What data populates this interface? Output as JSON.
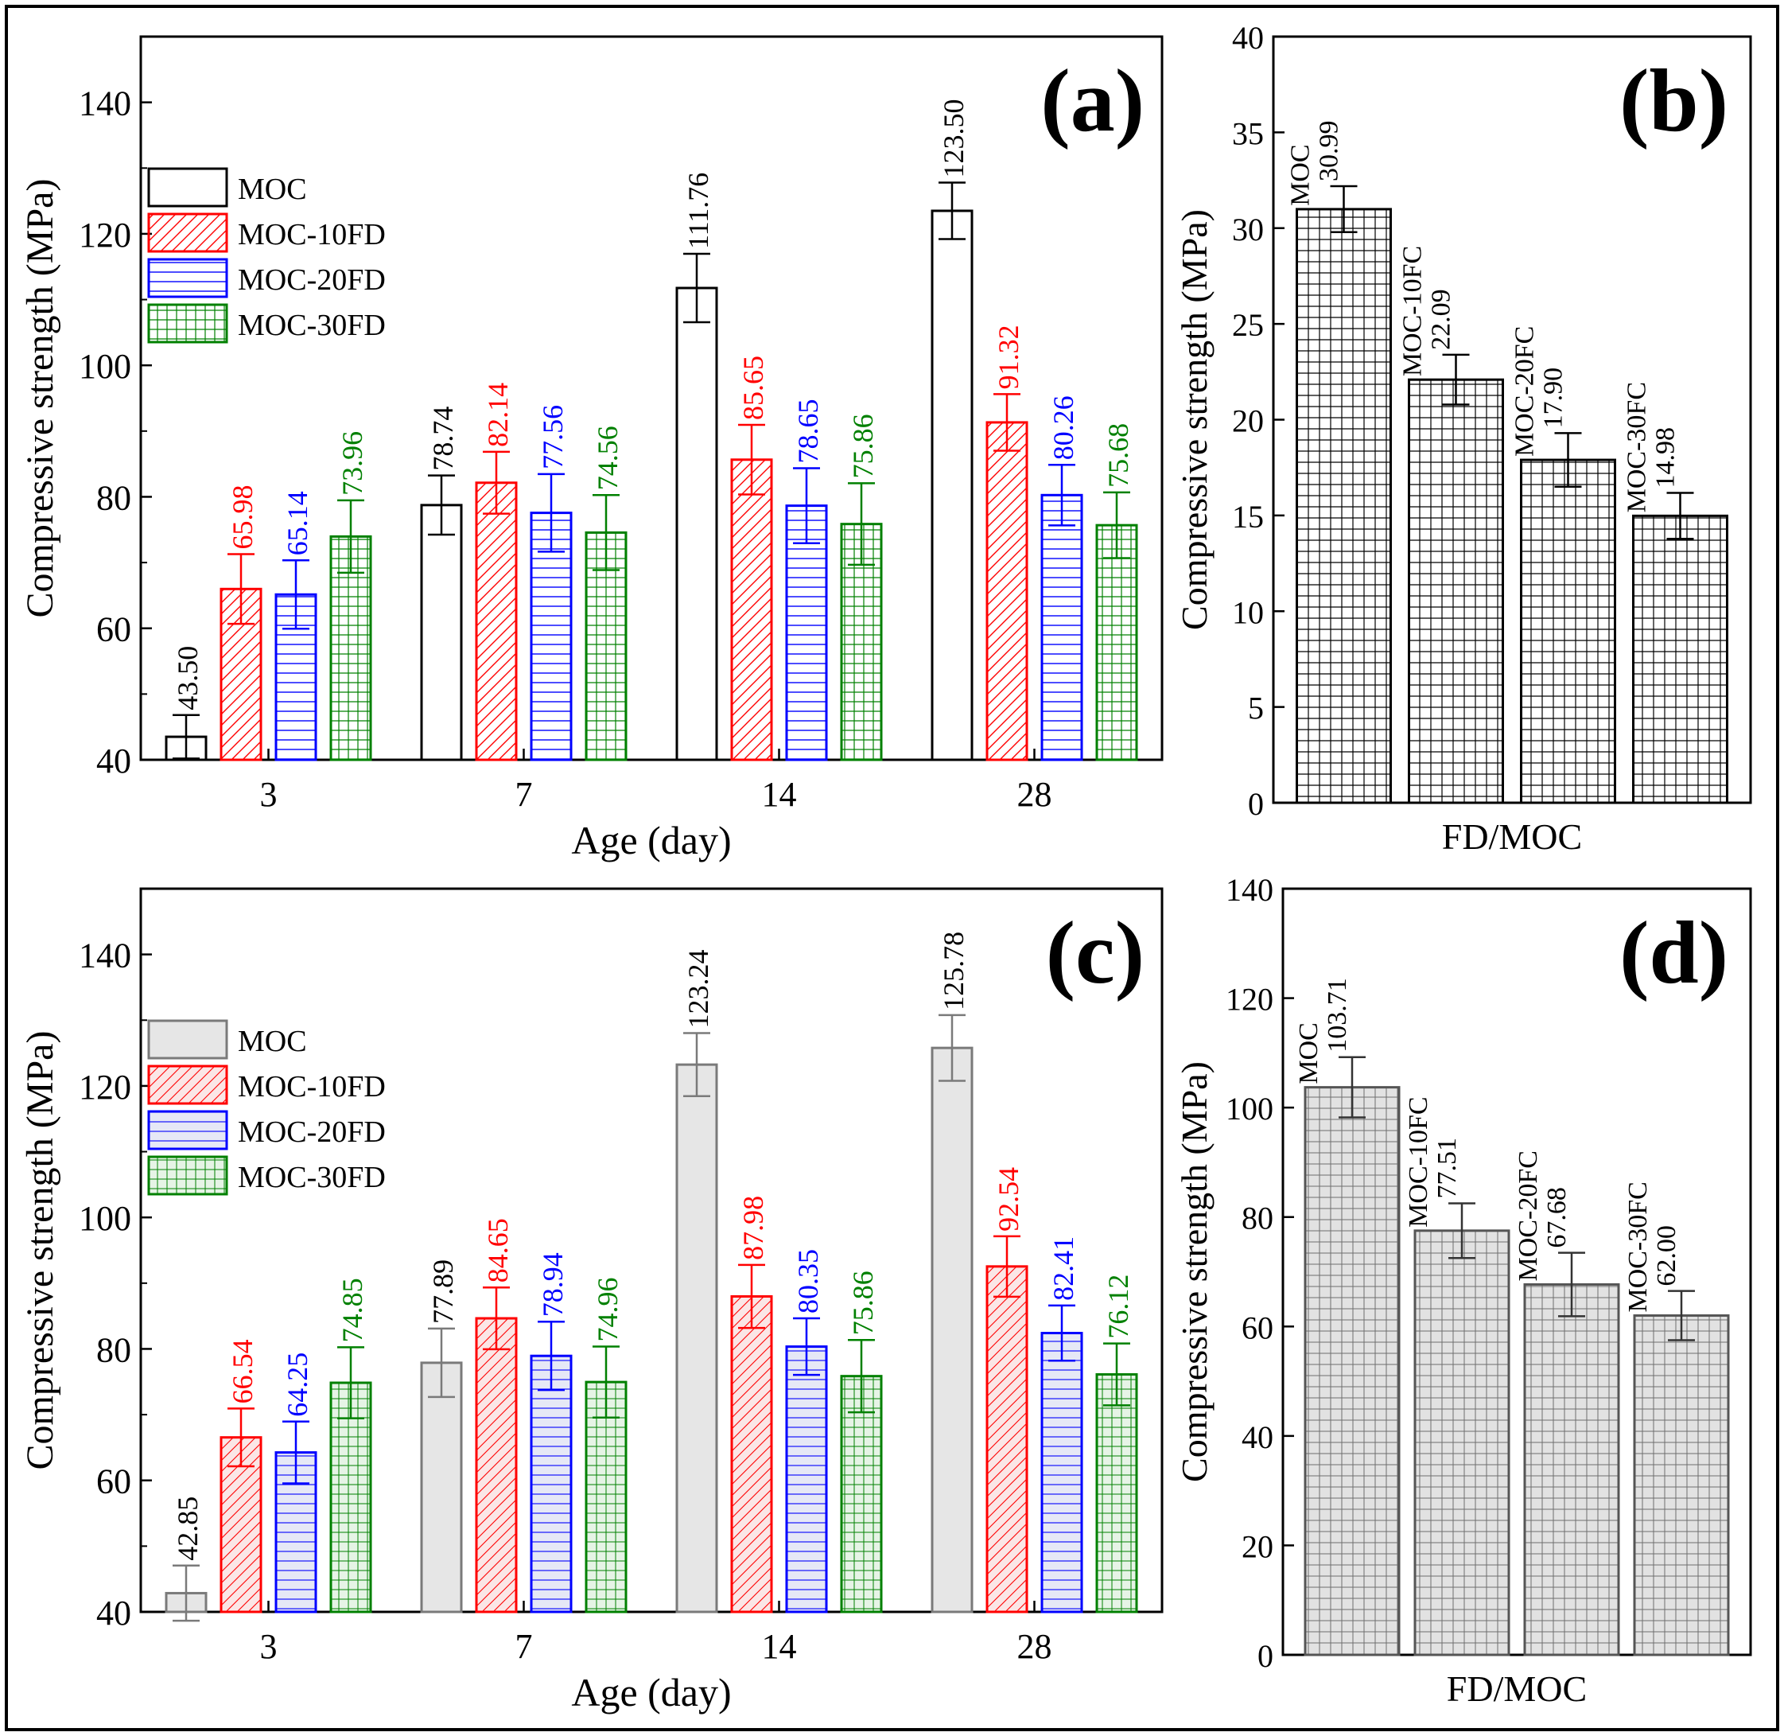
{
  "colors": {
    "series": [
      "#000000",
      "#ff0000",
      "#0000ff",
      "#008000"
    ],
    "fill_c": [
      "#e6e6e6",
      "#fbe6e6",
      "#e6e8f6",
      "#e6f4e6"
    ],
    "grey_outline": "#7a7a7a",
    "light_fill": "#e2e2e2"
  },
  "chart_data": [
    {
      "panel": "(a)",
      "type": "bar",
      "xlabel": "Age (day)",
      "ylabel": "Compressive strength (MPa)",
      "ylim": [
        40,
        150
      ],
      "yticks": [
        40,
        60,
        80,
        100,
        120,
        140
      ],
      "categories": [
        "3",
        "7",
        "14",
        "28"
      ],
      "legend_position": "left",
      "series": [
        {
          "name": "MOC",
          "values": [
            43.5,
            78.74,
            111.76,
            123.5
          ],
          "labels": [
            "43.50",
            "78.74",
            "111.76",
            "123.50"
          ],
          "errors": [
            3.3,
            4.5,
            5.2,
            4.3
          ],
          "pattern": "none"
        },
        {
          "name": "MOC-10FD",
          "values": [
            65.98,
            82.14,
            85.65,
            91.32
          ],
          "labels": [
            "65.98",
            "82.14",
            "85.65",
            "91.32"
          ],
          "errors": [
            5.3,
            4.7,
            5.3,
            4.3
          ],
          "pattern": "hatch"
        },
        {
          "name": "MOC-20FD",
          "values": [
            65.14,
            77.56,
            78.65,
            80.26
          ],
          "labels": [
            "65.14",
            "77.56",
            "78.65",
            "80.26"
          ],
          "errors": [
            5.2,
            5.9,
            5.7,
            4.6
          ],
          "pattern": "hlines"
        },
        {
          "name": "MOC-30FD",
          "values": [
            73.96,
            74.56,
            75.86,
            75.68
          ],
          "labels": [
            "73.96",
            "74.56",
            "75.86",
            "75.68"
          ],
          "errors": [
            5.5,
            5.7,
            6.2,
            5.0
          ],
          "pattern": "grid"
        }
      ]
    },
    {
      "panel": "(b)",
      "type": "bar",
      "xlabel": "FD/MOC",
      "ylabel": "Compressive strength (MPa)",
      "ylim": [
        0,
        40
      ],
      "yticks": [
        0,
        5,
        10,
        15,
        20,
        25,
        30,
        35,
        40
      ],
      "categories": [
        "MOC",
        "MOC-10FC",
        "MOC-20FC",
        "MOC-30FC"
      ],
      "values": [
        30.99,
        22.09,
        17.9,
        14.98
      ],
      "labels": [
        "30.99",
        "22.09",
        "17.90",
        "14.98"
      ],
      "errors": [
        1.2,
        1.3,
        1.4,
        1.2
      ],
      "pattern": "grid"
    },
    {
      "panel": "(c)",
      "type": "bar",
      "xlabel": "Age (day)",
      "ylabel": "Compressive strength (MPa)",
      "ylim": [
        40,
        150
      ],
      "yticks": [
        40,
        60,
        80,
        100,
        120,
        140
      ],
      "categories": [
        "3",
        "7",
        "14",
        "28"
      ],
      "legend_position": "left",
      "series": [
        {
          "name": "MOC",
          "values": [
            42.85,
            77.89,
            123.24,
            125.78
          ],
          "labels": [
            "42.85",
            "77.89",
            "123.24",
            "125.78"
          ],
          "errors": [
            4.2,
            5.2,
            4.8,
            5.0
          ],
          "pattern": "none"
        },
        {
          "name": "MOC-10FD",
          "values": [
            66.54,
            84.65,
            87.98,
            92.54
          ],
          "labels": [
            "66.54",
            "84.65",
            "87.98",
            "92.54"
          ],
          "errors": [
            4.4,
            4.7,
            4.8,
            4.6
          ],
          "pattern": "hatch"
        },
        {
          "name": "MOC-20FD",
          "values": [
            64.25,
            78.94,
            80.35,
            82.41
          ],
          "labels": [
            "64.25",
            "78.94",
            "80.35",
            "82.41"
          ],
          "errors": [
            4.7,
            5.2,
            4.3,
            4.2
          ],
          "pattern": "hlines"
        },
        {
          "name": "MOC-30FD",
          "values": [
            74.85,
            74.96,
            75.86,
            76.12
          ],
          "labels": [
            "74.85",
            "74.96",
            "75.86",
            "76.12"
          ],
          "errors": [
            5.4,
            5.4,
            5.5,
            4.7
          ],
          "pattern": "grid"
        }
      ]
    },
    {
      "panel": "(d)",
      "type": "bar",
      "xlabel": "FD/MOC",
      "ylabel": "Compressive strength (MPa)",
      "ylim": [
        0,
        140
      ],
      "yticks": [
        0,
        20,
        40,
        60,
        80,
        100,
        120,
        140
      ],
      "categories": [
        "MOC",
        "MOC-10FC",
        "MOC-20FC",
        "MOC-30FC"
      ],
      "values": [
        103.71,
        77.51,
        67.68,
        62.0
      ],
      "labels": [
        "103.71",
        "77.51",
        "67.68",
        "62.00"
      ],
      "errors": [
        5.5,
        5.0,
        5.8,
        4.5
      ],
      "pattern": "grid"
    }
  ]
}
